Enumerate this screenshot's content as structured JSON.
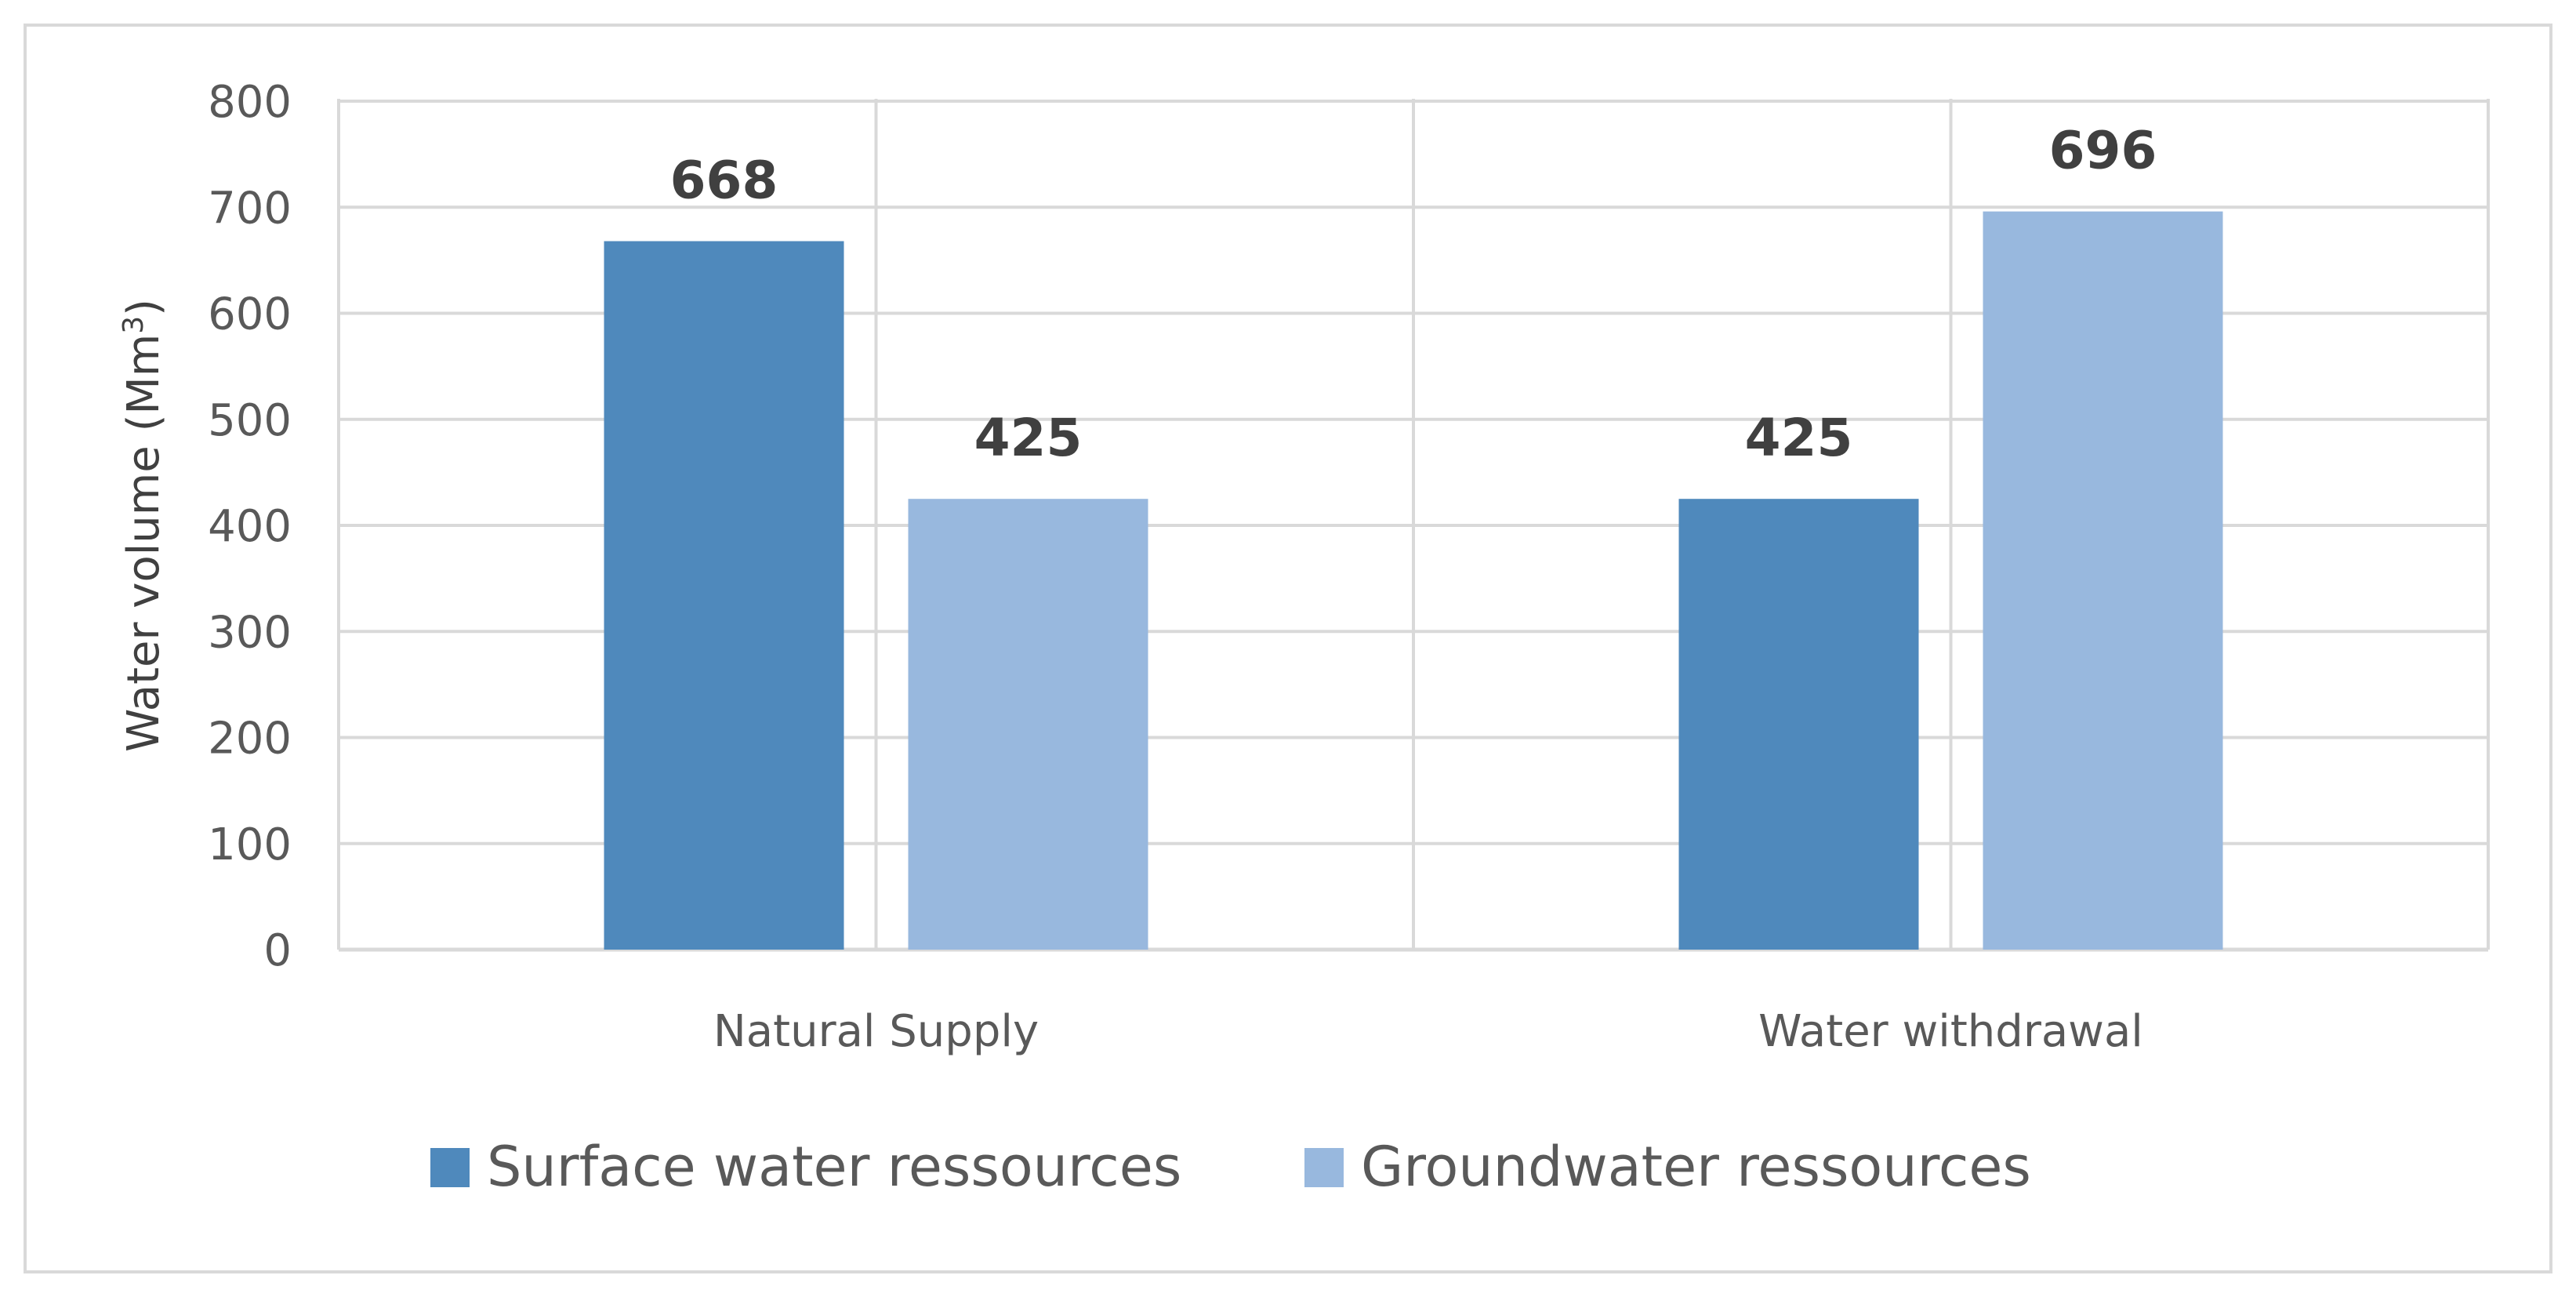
{
  "chart_data": {
    "type": "bar",
    "title": "",
    "xlabel": "",
    "ylabel": "Water volume (Mm",
    "ylabel_superscript": "3",
    "ylabel_suffix": ")",
    "ylim": [
      0,
      800
    ],
    "ytick_step": 100,
    "yticks": [
      "0",
      "100",
      "200",
      "300",
      "400",
      "500",
      "600",
      "700",
      "800"
    ],
    "grid": true,
    "legend_position": "bottom",
    "categories": [
      "Natural Supply",
      "Water withdrawal"
    ],
    "series": [
      {
        "name": "Surface water ressources",
        "color": "#4f89bc",
        "values": [
          668,
          425
        ],
        "labels": [
          "668",
          "425"
        ]
      },
      {
        "name": "Groundwater ressources",
        "color": "#98b8de",
        "values": [
          425,
          696
        ],
        "labels": [
          "425",
          "696"
        ]
      }
    ]
  }
}
